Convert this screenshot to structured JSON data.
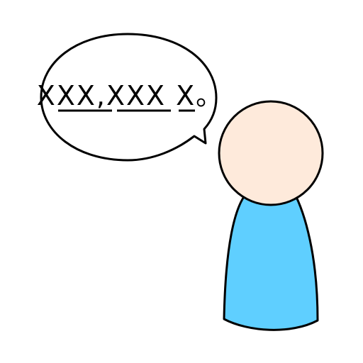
{
  "speech": {
    "text": "XXX,XXX X。"
  },
  "colors": {
    "outline": "#000000",
    "bubble_fill": "#ffffff",
    "head_fill": "#feeadb",
    "body_fill": "#5fcfff"
  }
}
